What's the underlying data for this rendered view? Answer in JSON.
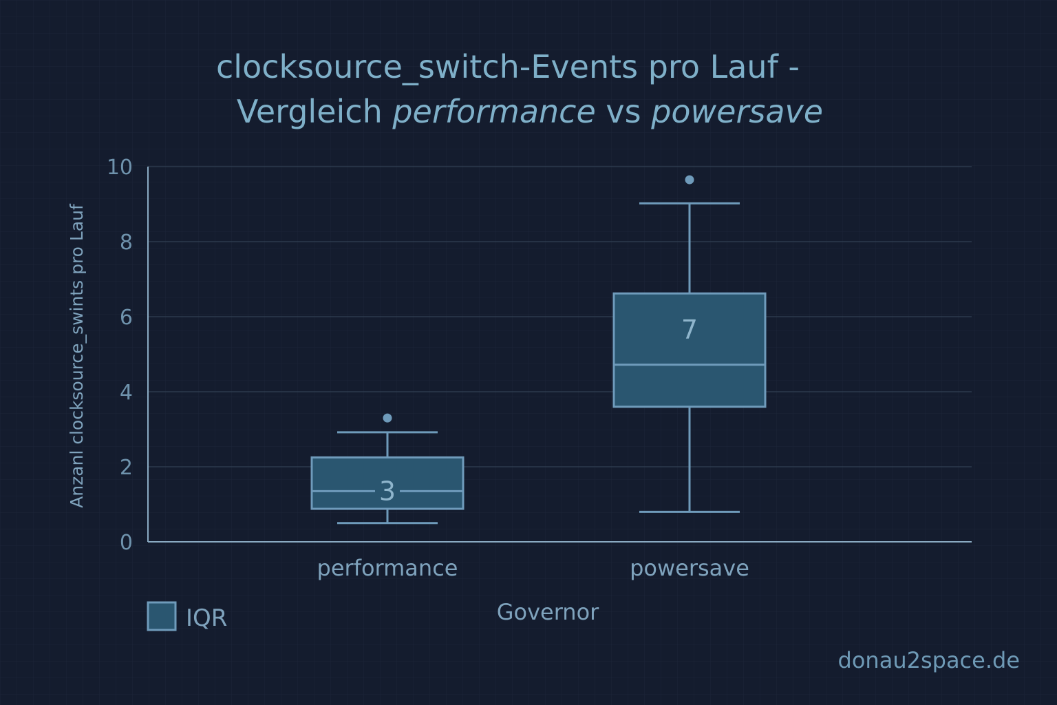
{
  "chart_data": {
    "type": "box",
    "title_line1": "clocksource_switch-Events pro Lauf -",
    "title_line2_prefix": "Vergleich ",
    "title_line2_em1": "performance",
    "title_line2_mid": " vs ",
    "title_line2_em2": "powersave",
    "xlabel": "Governor",
    "ylabel": "Anzanl clocksource_swints pro Lauf",
    "ylim": [
      0,
      10
    ],
    "yticks": [
      0,
      2,
      4,
      6,
      8,
      10
    ],
    "grid": true,
    "categories": [
      "performance",
      "powersave"
    ],
    "boxes": [
      {
        "category": "performance",
        "whisker_low": 0.5,
        "q1": 0.88,
        "median": 1.35,
        "q3": 2.25,
        "whisker_high": 2.92,
        "outliers": [
          3.3
        ],
        "label": "3"
      },
      {
        "category": "powersave",
        "whisker_low": 0.8,
        "q1": 3.6,
        "median": 4.72,
        "q3": 6.62,
        "whisker_high": 9.02,
        "outliers": [
          9.65
        ],
        "label": "7"
      }
    ],
    "legend": {
      "label": "IQR",
      "position": "bottom-left"
    },
    "colors": {
      "background": "#141c2e",
      "box_fill": "#2a5670",
      "box_stroke": "#6f9bbb",
      "grid": "#2d3a4d",
      "axis": "#8aaac2"
    }
  },
  "watermark": "donau2space.de"
}
